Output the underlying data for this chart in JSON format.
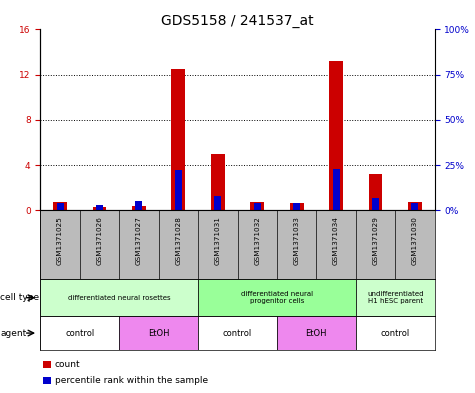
{
  "title": "GDS5158 / 241537_at",
  "samples": [
    "GSM1371025",
    "GSM1371026",
    "GSM1371027",
    "GSM1371028",
    "GSM1371031",
    "GSM1371032",
    "GSM1371033",
    "GSM1371034",
    "GSM1371029",
    "GSM1371030"
  ],
  "count_values": [
    0.7,
    0.25,
    0.4,
    12.5,
    5.0,
    0.7,
    0.6,
    13.2,
    3.2,
    0.75
  ],
  "percentile_values": [
    4,
    3,
    5,
    22,
    8,
    4,
    4,
    23,
    7,
    4
  ],
  "left_ylim": [
    0,
    16
  ],
  "right_ylim": [
    0,
    100
  ],
  "left_yticks": [
    0,
    4,
    8,
    12,
    16
  ],
  "right_yticks": [
    0,
    25,
    50,
    75,
    100
  ],
  "right_yticklabels": [
    "0%",
    "25%",
    "50%",
    "75%",
    "100%"
  ],
  "count_color": "#cc0000",
  "percentile_color": "#0000cc",
  "cell_type_groups": [
    {
      "label": "differentiated neural rosettes",
      "start": 0,
      "end": 4,
      "color": "#ccffcc"
    },
    {
      "label": "differentiated neural\nprogenitor cells",
      "start": 4,
      "end": 8,
      "color": "#99ff99"
    },
    {
      "label": "undifferentiated\nH1 hESC parent",
      "start": 8,
      "end": 10,
      "color": "#ccffcc"
    }
  ],
  "agent_groups": [
    {
      "label": "control",
      "start": 0,
      "end": 2,
      "color": "#ffffff"
    },
    {
      "label": "EtOH",
      "start": 2,
      "end": 4,
      "color": "#ee88ee"
    },
    {
      "label": "control",
      "start": 4,
      "end": 6,
      "color": "#ffffff"
    },
    {
      "label": "EtOH",
      "start": 6,
      "end": 8,
      "color": "#ee88ee"
    },
    {
      "label": "control",
      "start": 8,
      "end": 10,
      "color": "#ffffff"
    }
  ],
  "sample_bg_color": "#bbbbbb",
  "cell_type_label": "cell type",
  "agent_label": "agent",
  "legend_count_label": "count",
  "legend_percentile_label": "percentile rank within the sample",
  "title_fontsize": 10,
  "tick_fontsize": 6.5,
  "bar_fontsize": 5.5,
  "annot_fontsize": 6.5
}
